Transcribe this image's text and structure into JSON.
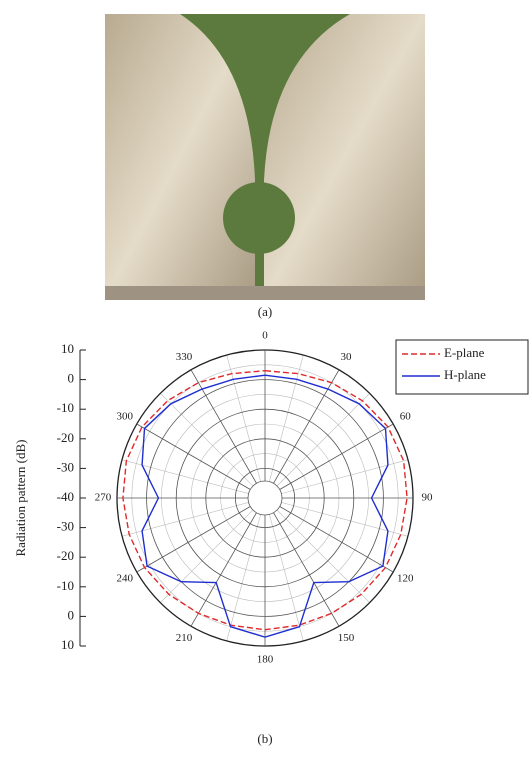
{
  "figure": {
    "label_a": "(a)",
    "label_b": "(b)"
  },
  "chart_data": {
    "type": "polar",
    "y_label": "Radiation pattern (dB)",
    "rlim": [
      -40,
      10
    ],
    "rticks": [
      -40,
      -30,
      -20,
      -10,
      0,
      10
    ],
    "thetaticks": [
      0,
      30,
      60,
      90,
      120,
      150,
      180,
      210,
      240,
      270,
      300,
      330
    ],
    "x": [
      0,
      15,
      30,
      45,
      60,
      75,
      90,
      105,
      120,
      135,
      150,
      165,
      180,
      195,
      210,
      225,
      240,
      255,
      270,
      285,
      300,
      315,
      330,
      345,
      360
    ],
    "series": [
      {
        "name": "E-plane",
        "color": "#e02a2a",
        "dash": true,
        "values": [
          3,
          3.5,
          5,
          6.5,
          8,
          8.5,
          8,
          7.5,
          7,
          6,
          5,
          4.5,
          4.5,
          4.5,
          5,
          6,
          7,
          7.5,
          8,
          8.5,
          8,
          6.5,
          5,
          3.5,
          3
        ]
      },
      {
        "name": "H-plane",
        "color": "#1e2ed0",
        "dash": false,
        "values": [
          1.5,
          1.5,
          2.5,
          5,
          7,
          3,
          -4,
          3,
          6,
          0,
          -7,
          5,
          7,
          5,
          -7,
          0,
          6,
          3,
          -4,
          3,
          7,
          5,
          2.5,
          1.5,
          1.5
        ]
      }
    ],
    "grid": true,
    "legend": "top-right"
  }
}
